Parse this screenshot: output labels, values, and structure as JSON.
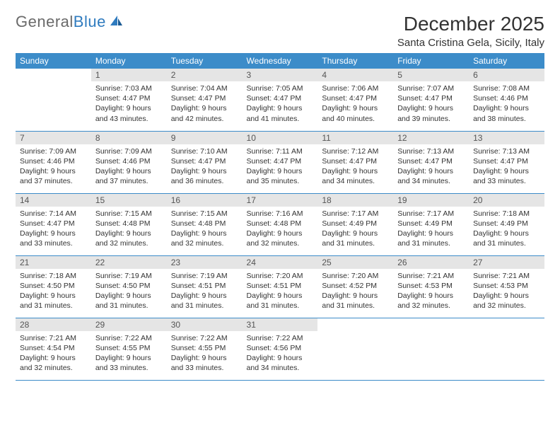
{
  "brand": {
    "part1": "General",
    "part2": "Blue"
  },
  "title": "December 2025",
  "location": "Santa Cristina Gela, Sicily, Italy",
  "colors": {
    "header_bg": "#3c8cc9",
    "header_text": "#ffffff",
    "daynum_bg": "#e5e5e5",
    "daynum_text": "#555555",
    "body_text": "#333333",
    "rule": "#3c8cc9",
    "logo_gray": "#6a6a6a",
    "logo_blue": "#2f7bbf"
  },
  "layout": {
    "columns": 7,
    "rows": 5,
    "first_weekday_offset": 1
  },
  "weekdays": [
    "Sunday",
    "Monday",
    "Tuesday",
    "Wednesday",
    "Thursday",
    "Friday",
    "Saturday"
  ],
  "days": [
    {
      "n": 1,
      "sunrise": "7:03 AM",
      "sunset": "4:47 PM",
      "daylight": "9 hours and 43 minutes."
    },
    {
      "n": 2,
      "sunrise": "7:04 AM",
      "sunset": "4:47 PM",
      "daylight": "9 hours and 42 minutes."
    },
    {
      "n": 3,
      "sunrise": "7:05 AM",
      "sunset": "4:47 PM",
      "daylight": "9 hours and 41 minutes."
    },
    {
      "n": 4,
      "sunrise": "7:06 AM",
      "sunset": "4:47 PM",
      "daylight": "9 hours and 40 minutes."
    },
    {
      "n": 5,
      "sunrise": "7:07 AM",
      "sunset": "4:47 PM",
      "daylight": "9 hours and 39 minutes."
    },
    {
      "n": 6,
      "sunrise": "7:08 AM",
      "sunset": "4:46 PM",
      "daylight": "9 hours and 38 minutes."
    },
    {
      "n": 7,
      "sunrise": "7:09 AM",
      "sunset": "4:46 PM",
      "daylight": "9 hours and 37 minutes."
    },
    {
      "n": 8,
      "sunrise": "7:09 AM",
      "sunset": "4:46 PM",
      "daylight": "9 hours and 37 minutes."
    },
    {
      "n": 9,
      "sunrise": "7:10 AM",
      "sunset": "4:47 PM",
      "daylight": "9 hours and 36 minutes."
    },
    {
      "n": 10,
      "sunrise": "7:11 AM",
      "sunset": "4:47 PM",
      "daylight": "9 hours and 35 minutes."
    },
    {
      "n": 11,
      "sunrise": "7:12 AM",
      "sunset": "4:47 PM",
      "daylight": "9 hours and 34 minutes."
    },
    {
      "n": 12,
      "sunrise": "7:13 AM",
      "sunset": "4:47 PM",
      "daylight": "9 hours and 34 minutes."
    },
    {
      "n": 13,
      "sunrise": "7:13 AM",
      "sunset": "4:47 PM",
      "daylight": "9 hours and 33 minutes."
    },
    {
      "n": 14,
      "sunrise": "7:14 AM",
      "sunset": "4:47 PM",
      "daylight": "9 hours and 33 minutes."
    },
    {
      "n": 15,
      "sunrise": "7:15 AM",
      "sunset": "4:48 PM",
      "daylight": "9 hours and 32 minutes."
    },
    {
      "n": 16,
      "sunrise": "7:15 AM",
      "sunset": "4:48 PM",
      "daylight": "9 hours and 32 minutes."
    },
    {
      "n": 17,
      "sunrise": "7:16 AM",
      "sunset": "4:48 PM",
      "daylight": "9 hours and 32 minutes."
    },
    {
      "n": 18,
      "sunrise": "7:17 AM",
      "sunset": "4:49 PM",
      "daylight": "9 hours and 31 minutes."
    },
    {
      "n": 19,
      "sunrise": "7:17 AM",
      "sunset": "4:49 PM",
      "daylight": "9 hours and 31 minutes."
    },
    {
      "n": 20,
      "sunrise": "7:18 AM",
      "sunset": "4:49 PM",
      "daylight": "9 hours and 31 minutes."
    },
    {
      "n": 21,
      "sunrise": "7:18 AM",
      "sunset": "4:50 PM",
      "daylight": "9 hours and 31 minutes."
    },
    {
      "n": 22,
      "sunrise": "7:19 AM",
      "sunset": "4:50 PM",
      "daylight": "9 hours and 31 minutes."
    },
    {
      "n": 23,
      "sunrise": "7:19 AM",
      "sunset": "4:51 PM",
      "daylight": "9 hours and 31 minutes."
    },
    {
      "n": 24,
      "sunrise": "7:20 AM",
      "sunset": "4:51 PM",
      "daylight": "9 hours and 31 minutes."
    },
    {
      "n": 25,
      "sunrise": "7:20 AM",
      "sunset": "4:52 PM",
      "daylight": "9 hours and 31 minutes."
    },
    {
      "n": 26,
      "sunrise": "7:21 AM",
      "sunset": "4:53 PM",
      "daylight": "9 hours and 32 minutes."
    },
    {
      "n": 27,
      "sunrise": "7:21 AM",
      "sunset": "4:53 PM",
      "daylight": "9 hours and 32 minutes."
    },
    {
      "n": 28,
      "sunrise": "7:21 AM",
      "sunset": "4:54 PM",
      "daylight": "9 hours and 32 minutes."
    },
    {
      "n": 29,
      "sunrise": "7:22 AM",
      "sunset": "4:55 PM",
      "daylight": "9 hours and 33 minutes."
    },
    {
      "n": 30,
      "sunrise": "7:22 AM",
      "sunset": "4:55 PM",
      "daylight": "9 hours and 33 minutes."
    },
    {
      "n": 31,
      "sunrise": "7:22 AM",
      "sunset": "4:56 PM",
      "daylight": "9 hours and 34 minutes."
    }
  ],
  "labels": {
    "sunrise": "Sunrise:",
    "sunset": "Sunset:",
    "daylight": "Daylight:"
  },
  "typography": {
    "title_fontsize": 28,
    "location_fontsize": 15,
    "header_fontsize": 12,
    "daynum_fontsize": 12,
    "cell_fontsize": 10.5
  }
}
